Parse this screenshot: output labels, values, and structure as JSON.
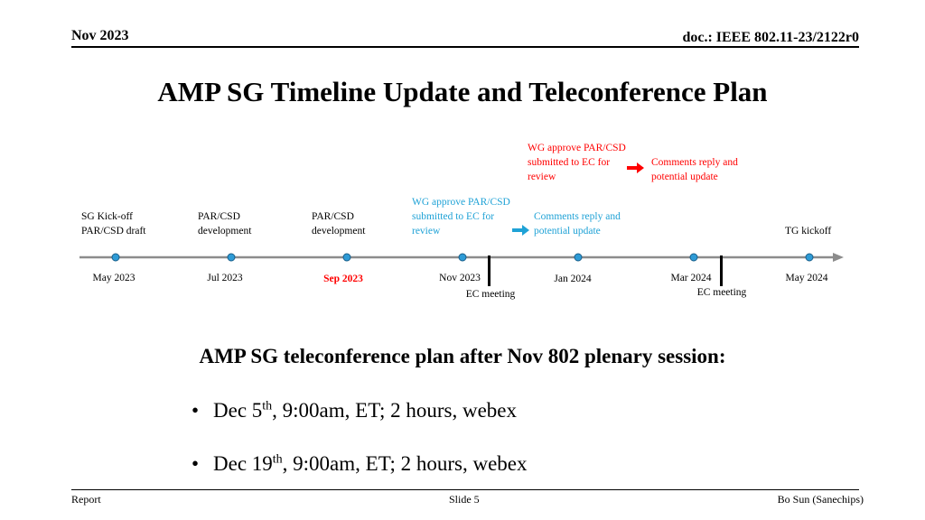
{
  "header": {
    "date": "Nov 2023",
    "doc": "doc.: IEEE 802.11-23/2122r0"
  },
  "title": "AMP SG Timeline Update and Teleconference Plan",
  "timeline": {
    "dates": [
      "May 2023",
      "Jul 2023",
      "Sep 2023",
      "Nov 2023",
      "Jan 2024",
      "Mar 2024",
      "May 2024"
    ],
    "highlighted_date": "Sep 2023",
    "highlight_color": "#ff0000",
    "dot_color": "#2e9bd6",
    "line_color": "#8c8c8c",
    "above_labels": {
      "kickoff_line1": "SG Kick-off",
      "kickoff_line2": "PAR/CSD draft",
      "jul_line1": "PAR/CSD",
      "jul_line2": "development",
      "sep_line1": "PAR/CSD",
      "sep_line2": "development",
      "tg_kickoff": "TG kickoff"
    },
    "blue_labels": {
      "color": "#1fa2d6",
      "approve_line1": "WG approve PAR/CSD",
      "approve_line2": "submitted to EC for",
      "approve_line3": "review",
      "reply_line1": "Comments reply and",
      "reply_line2": "potential update"
    },
    "red_labels": {
      "color": "#ff0000",
      "approve_line1": "WG approve PAR/CSD",
      "approve_line2": "submitted to EC for",
      "approve_line3": "review",
      "reply_line1": "Comments reply and",
      "reply_line2": "potential update"
    },
    "ec_meetings": [
      "EC meeting",
      "EC meeting"
    ]
  },
  "plan": {
    "heading": "AMP SG teleconference plan after Nov 802 plenary session:",
    "items": [
      {
        "bullet": "•",
        "pre": "Dec 5",
        "sup": "th",
        "post": ", 9:00am, ET; 2 hours, webex"
      },
      {
        "bullet": "•",
        "pre": "Dec 19",
        "sup": "th",
        "post": ", 9:00am, ET; 2 hours, webex"
      }
    ]
  },
  "footer": {
    "left": "Report",
    "center": "Slide 5",
    "right": "Bo Sun (Sanechips)"
  }
}
